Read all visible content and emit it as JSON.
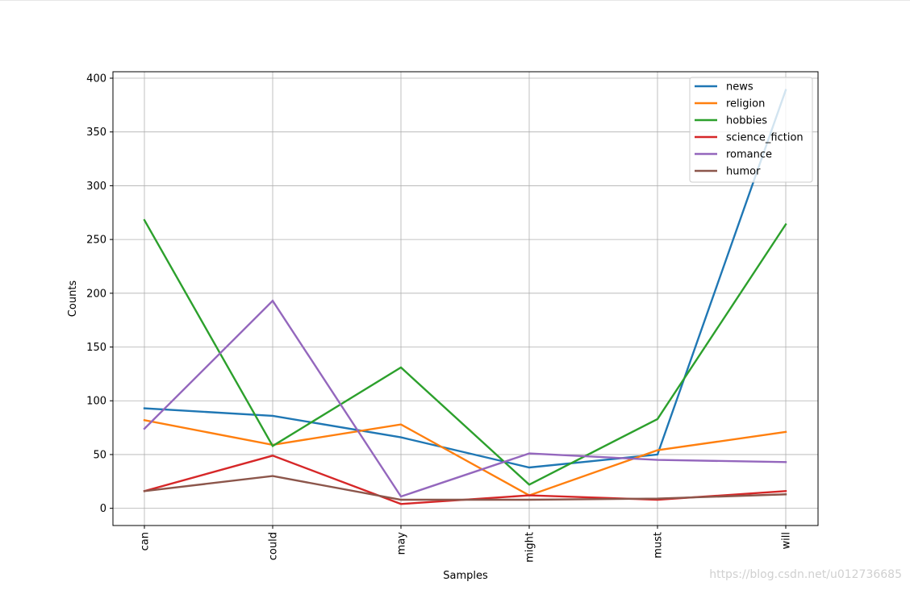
{
  "chart_data": {
    "type": "line",
    "categories": [
      "can",
      "could",
      "may",
      "might",
      "must",
      "will"
    ],
    "xlabel": "Samples",
    "ylabel": "Counts",
    "ylim": [
      -16,
      406
    ],
    "yticks": [
      0,
      50,
      100,
      150,
      200,
      250,
      300,
      350,
      400
    ],
    "grid": true,
    "legend_position": "top-right",
    "series": [
      {
        "name": "news",
        "color": "#1f77b4",
        "values": [
          93,
          86,
          66,
          38,
          50,
          389
        ]
      },
      {
        "name": "religion",
        "color": "#ff7f0e",
        "values": [
          82,
          59,
          78,
          12,
          54,
          71
        ]
      },
      {
        "name": "hobbies",
        "color": "#2ca02c",
        "values": [
          268,
          58,
          131,
          22,
          83,
          264
        ]
      },
      {
        "name": "science_fiction",
        "color": "#d62728",
        "values": [
          16,
          49,
          4,
          12,
          8,
          16
        ]
      },
      {
        "name": "romance",
        "color": "#9467bd",
        "values": [
          74,
          193,
          11,
          51,
          45,
          43
        ]
      },
      {
        "name": "humor",
        "color": "#8c564b",
        "values": [
          16,
          30,
          8,
          8,
          9,
          13
        ]
      }
    ]
  },
  "watermark": "https://blog.csdn.net/u012736685"
}
